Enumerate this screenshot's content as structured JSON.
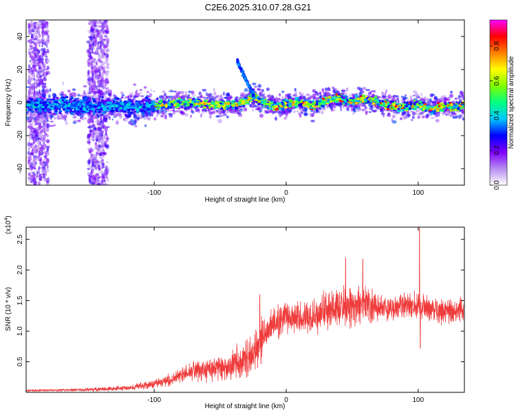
{
  "title": "C2E6.2025.310.07.28.G21",
  "chart_data": [
    {
      "type": "heatmap",
      "name": "spectrogram",
      "xlabel": "Height of straight line (km)",
      "ylabel": "Frequency (Hz)",
      "xlim": [
        -197,
        135
      ],
      "ylim": [
        -50,
        50
      ],
      "x_ticks": [
        -100,
        0,
        100
      ],
      "x_tick_labels": [
        "-100",
        "0",
        "100"
      ],
      "y_ticks": [
        -40,
        -20,
        0,
        20,
        40
      ],
      "y_tick_labels": [
        "-40",
        "-20",
        "0",
        "20",
        "40"
      ],
      "colorbar": {
        "label": "Normalized spectral amplitude",
        "range": [
          0.0,
          0.95
        ],
        "ticks": [
          0.0,
          0.2,
          0.4,
          0.6,
          0.8
        ],
        "tick_labels": [
          "0.0",
          "0.2",
          "0.4",
          "0.6",
          "0.8"
        ],
        "colormap": [
          "#ffffff",
          "#b58cf0",
          "#8000ff",
          "#0000ff",
          "#00c8ff",
          "#00ff80",
          "#80ff00",
          "#ffff00",
          "#ff8000",
          "#ff0000",
          "#ff00ff"
        ]
      },
      "ridge": {
        "x": [
          -190,
          -170,
          -150,
          -130,
          -110,
          -90,
          -70,
          -50,
          -35,
          -28,
          -25,
          -20,
          -10,
          0,
          10,
          20,
          30,
          40,
          50,
          60,
          70,
          80,
          90,
          100,
          110,
          120,
          130,
          135
        ],
        "freq_hz": [
          -2,
          -1,
          -3,
          -2,
          -3,
          -1,
          0,
          -2,
          -1,
          2,
          4,
          1,
          -2,
          -1,
          0,
          -2,
          1,
          3,
          0,
          2,
          0,
          -2,
          -3,
          -1,
          -4,
          -2,
          -3,
          -1
        ]
      },
      "tail_start_x": -24,
      "tail_end_x": -37,
      "tail_end_freq": 25
    },
    {
      "type": "line",
      "name": "snr",
      "xlabel": "Height of straight line (km)",
      "ylabel": "SNR (10 * v/v)",
      "y_multiplier": "(x10",
      "y_multiplier_exp": "4",
      "y_multiplier_close": ")",
      "xlim": [
        -197,
        135
      ],
      "ylim": [
        0,
        2.7
      ],
      "x_ticks": [
        -100,
        0,
        100
      ],
      "x_tick_labels": [
        "-100",
        "0",
        "100"
      ],
      "y_ticks": [
        0.5,
        1.0,
        1.5,
        2.0,
        2.5
      ],
      "y_tick_labels": [
        "0.5",
        "1.0",
        "1.5",
        "2.0",
        "2.5"
      ],
      "color": "#ef3b3b",
      "envelope": {
        "x": [
          -197,
          -160,
          -140,
          -120,
          -100,
          -85,
          -75,
          -60,
          -45,
          -35,
          -25,
          -20,
          -15,
          -10,
          -5,
          0,
          10,
          20,
          30,
          40,
          50,
          60,
          70,
          80,
          90,
          100,
          110,
          120,
          135
        ],
        "mean": [
          0.03,
          0.04,
          0.05,
          0.07,
          0.14,
          0.22,
          0.32,
          0.36,
          0.42,
          0.5,
          0.62,
          0.78,
          1.0,
          1.1,
          1.15,
          1.22,
          1.22,
          1.22,
          1.34,
          1.38,
          1.4,
          1.45,
          1.38,
          1.38,
          1.42,
          1.42,
          1.36,
          1.3,
          1.35
        ],
        "spread": [
          0.015,
          0.02,
          0.03,
          0.04,
          0.06,
          0.1,
          0.14,
          0.18,
          0.22,
          0.26,
          0.3,
          0.32,
          0.3,
          0.26,
          0.25,
          0.22,
          0.22,
          0.24,
          0.28,
          0.3,
          0.28,
          0.26,
          0.2,
          0.18,
          0.18,
          0.2,
          0.18,
          0.18,
          0.2
        ]
      },
      "spikes": [
        {
          "x": -20,
          "y": 1.6
        },
        {
          "x": 45,
          "y": 2.2
        },
        {
          "x": 58,
          "y": 2.18
        },
        {
          "x": 101,
          "y": 2.7
        },
        {
          "x": 101.6,
          "y": 0.72
        }
      ]
    }
  ]
}
